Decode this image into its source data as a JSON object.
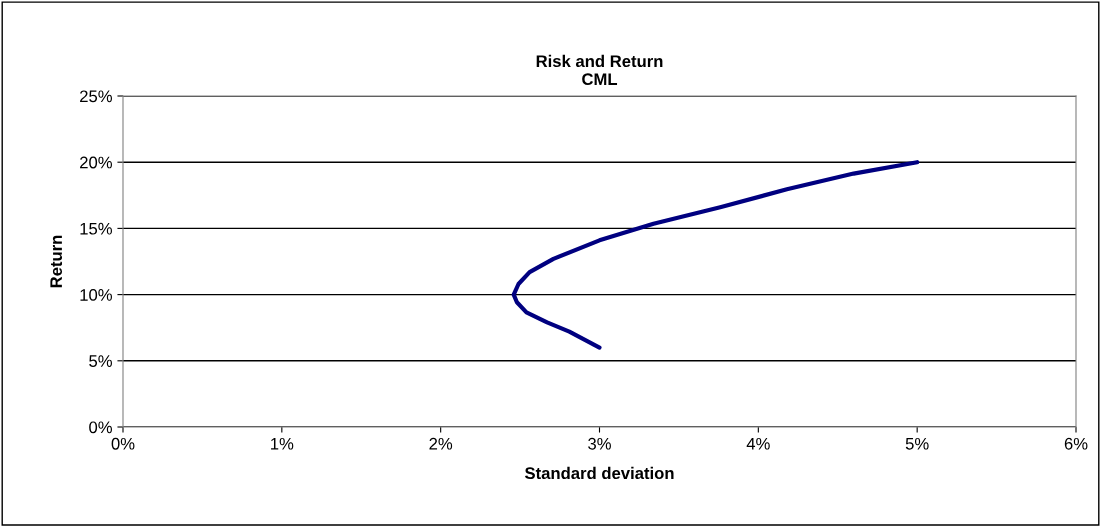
{
  "chart_data": {
    "type": "line",
    "title": "Risk and Return\nCML",
    "xlabel": "Standard deviation",
    "ylabel": "Return",
    "series": [
      {
        "color": "#000080",
        "x": [
          3.0,
          2.81,
          2.67,
          2.54,
          2.48,
          2.46,
          2.49,
          2.56,
          2.71,
          3.0,
          3.34,
          3.76,
          4.18,
          4.6,
          5.0
        ],
        "values": [
          6.0,
          7.2,
          7.9,
          8.66,
          9.42,
          10.0,
          10.8,
          11.7,
          12.7,
          14.1,
          15.35,
          16.6,
          17.95,
          19.14,
          20.0
        ]
      }
    ],
    "xlim": [
      0,
      6
    ],
    "xticks": [
      {
        "value": 0,
        "label": "0%"
      },
      {
        "value": 1,
        "label": "1%"
      },
      {
        "value": 2,
        "label": "2%"
      },
      {
        "value": 3,
        "label": "3%"
      },
      {
        "value": 4,
        "label": "4%"
      },
      {
        "value": 5,
        "label": "5%"
      },
      {
        "value": 6,
        "label": "6%"
      }
    ],
    "ylim": [
      0,
      25
    ],
    "yticks": [
      {
        "value": 0,
        "label": "0%"
      },
      {
        "value": 5,
        "label": "5%"
      },
      {
        "value": 10,
        "label": "10%"
      },
      {
        "value": 15,
        "label": "15%"
      },
      {
        "value": 20,
        "label": "20%"
      },
      {
        "value": 25,
        "label": "25%"
      }
    ],
    "grid": "y",
    "marker": "none",
    "line_style": "solid"
  }
}
